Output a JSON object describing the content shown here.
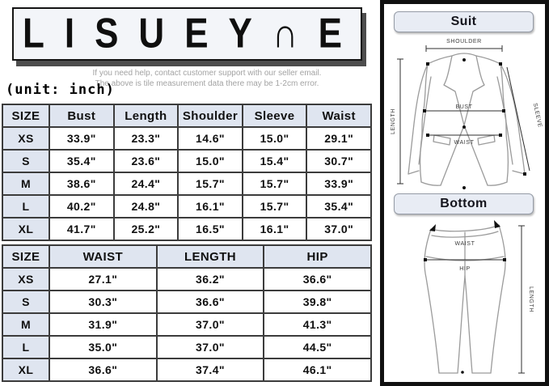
{
  "header": {
    "logo_text": "LISUEY∩E",
    "help_line1": "If you need help, contact customer support with our seller email.",
    "help_line2": "The above is tile measurement data there may be 1-2cm error.",
    "unit_label": "(unit: inch)"
  },
  "suit_table": {
    "columns": [
      "SIZE",
      "Bust",
      "Length",
      "Shoulder",
      "Sleeve",
      "Waist"
    ],
    "rows": [
      {
        "size": "XS",
        "values": [
          "33.9\"",
          "23.3\"",
          "14.6\"",
          "15.0\"",
          "29.1\""
        ]
      },
      {
        "size": "S",
        "values": [
          "35.4\"",
          "23.6\"",
          "15.0\"",
          "15.4\"",
          "30.7\""
        ]
      },
      {
        "size": "M",
        "values": [
          "38.6\"",
          "24.4\"",
          "15.7\"",
          "15.7\"",
          "33.9\""
        ]
      },
      {
        "size": "L",
        "values": [
          "40.2\"",
          "24.8\"",
          "16.1\"",
          "15.7\"",
          "35.4\""
        ]
      },
      {
        "size": "XL",
        "values": [
          "41.7\"",
          "25.2\"",
          "16.5\"",
          "16.1\"",
          "37.0\""
        ]
      }
    ]
  },
  "bottom_table": {
    "columns": [
      "SIZE",
      "WAIST",
      "LENGTH",
      "HIP"
    ],
    "rows": [
      {
        "size": "XS",
        "values": [
          "27.1\"",
          "36.2\"",
          "36.6\""
        ]
      },
      {
        "size": "S",
        "values": [
          "30.3\"",
          "36.6\"",
          "39.8\""
        ]
      },
      {
        "size": "M",
        "values": [
          "31.9\"",
          "37.0\"",
          "41.3\""
        ]
      },
      {
        "size": "L",
        "values": [
          "35.0\"",
          "37.0\"",
          "44.5\""
        ]
      },
      {
        "size": "XL",
        "values": [
          "36.6\"",
          "37.4\"",
          "46.1\""
        ]
      }
    ]
  },
  "diagram_panel": {
    "suit": {
      "title": "Suit",
      "labels": {
        "shoulder": "SHOULDER",
        "length": "LENGTH",
        "sleeve": "SLEEVE",
        "bust": "BUST",
        "waist": "WAIST"
      }
    },
    "bottom": {
      "title": "Bottom",
      "labels": {
        "waist": "WAIST",
        "hip": "HIP",
        "length": "LENGTH"
      }
    }
  },
  "colors": {
    "table_header_bg": "#dfe5f0",
    "table_border": "#3c3c3c",
    "badge_bg": "#e8ecf4",
    "logo_box_bg": "#f3f5f9",
    "panel_border": "#101010",
    "help_text": "#a3a3a3"
  }
}
